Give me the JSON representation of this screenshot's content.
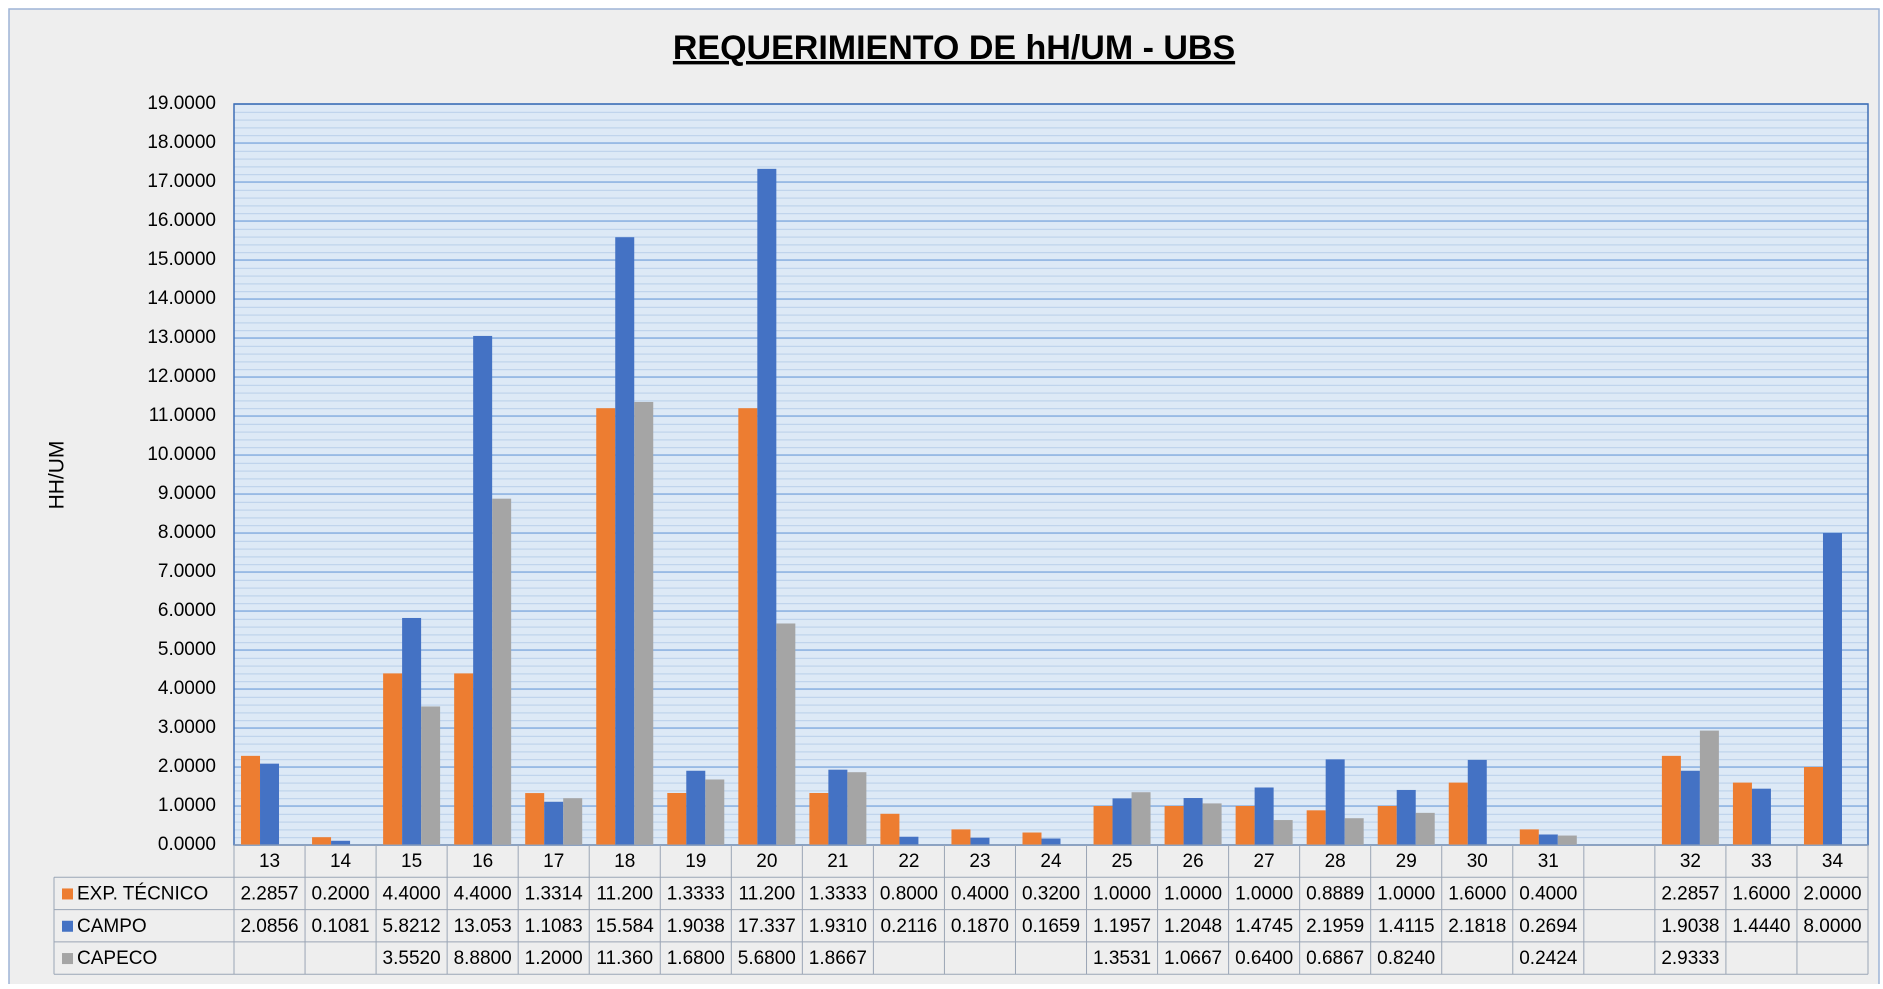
{
  "chart_data": {
    "type": "bar",
    "title": "REQUERIMIENTO DE hH/UM - UBS",
    "ylabel": "HH/UM",
    "categories": [
      "13",
      "14",
      "15",
      "16",
      "17",
      "18",
      "19",
      "20",
      "21",
      "22",
      "23",
      "24",
      "25",
      "26",
      "27",
      "28",
      "29",
      "30",
      "31",
      null,
      "32",
      "33",
      "34"
    ],
    "series": [
      {
        "name": "EXP. TÉCNICO",
        "color": "#ed7d31",
        "values": [
          2.2857,
          0.2,
          4.4,
          4.4,
          1.3314,
          11.2,
          1.3333,
          11.2,
          1.3333,
          0.8,
          0.4,
          0.32,
          1,
          1,
          1,
          0.8889,
          1,
          1.6,
          0.4,
          null,
          2.2857,
          1.6,
          2
        ],
        "value_labels": [
          "2.2857",
          "0.2000",
          "4.4000",
          "4.4000",
          "1.3314",
          "11.200",
          "1.3333",
          "11.200",
          "1.3333",
          "0.8000",
          "0.4000",
          "0.3200",
          "1.0000",
          "1.0000",
          "1.0000",
          "0.8889",
          "1.0000",
          "1.6000",
          "0.4000",
          null,
          "2.2857",
          "1.6000",
          "2.0000"
        ]
      },
      {
        "name": "CAMPO",
        "color": "#4472c4",
        "values": [
          2.0856,
          0.1081,
          5.8212,
          13.053,
          1.1083,
          15.584,
          1.9038,
          17.337,
          1.931,
          0.2116,
          0.187,
          0.1659,
          1.1957,
          1.2048,
          1.4745,
          2.1959,
          1.4115,
          2.1818,
          0.2694,
          null,
          1.9038,
          1.444,
          8
        ],
        "value_labels": [
          "2.0856",
          "0.1081",
          "5.8212",
          "13.053",
          "1.1083",
          "15.584",
          "1.9038",
          "17.337",
          "1.9310",
          "0.2116",
          "0.1870",
          "0.1659",
          "1.1957",
          "1.2048",
          "1.4745",
          "2.1959",
          "1.4115",
          "2.1818",
          "0.2694",
          null,
          "1.9038",
          "1.4440",
          "8.0000"
        ]
      },
      {
        "name": "CAPECO",
        "color": "#a5a5a5",
        "values": [
          null,
          null,
          3.552,
          8.88,
          1.2,
          11.36,
          1.68,
          5.68,
          1.8667,
          null,
          null,
          null,
          1.3531,
          1.0667,
          0.64,
          0.6867,
          0.824,
          null,
          0.2424,
          null,
          2.9333,
          null,
          null
        ],
        "value_labels": [
          null,
          null,
          "3.5520",
          "8.8800",
          "1.2000",
          "11.360",
          "1.6800",
          "5.6800",
          "1.8667",
          null,
          null,
          null,
          "1.3531",
          "1.0667",
          "0.6400",
          "0.6867",
          "0.8240",
          null,
          "0.2424",
          null,
          "2.9333",
          null,
          null
        ]
      }
    ],
    "ylim": [
      0,
      19
    ],
    "yticks": [
      {
        "value": 0,
        "label": "0.0000"
      },
      {
        "value": 1,
        "label": "1.0000"
      },
      {
        "value": 2,
        "label": "2.0000"
      },
      {
        "value": 3,
        "label": "3.0000"
      },
      {
        "value": 4,
        "label": "4.0000"
      },
      {
        "value": 5,
        "label": "5.0000"
      },
      {
        "value": 6,
        "label": "6.0000"
      },
      {
        "value": 7,
        "label": "7.0000"
      },
      {
        "value": 8,
        "label": "8.0000"
      },
      {
        "value": 9,
        "label": "9.0000"
      },
      {
        "value": 10,
        "label": "10.0000"
      },
      {
        "value": 11,
        "label": "11.0000"
      },
      {
        "value": 12,
        "label": "12.0000"
      },
      {
        "value": 13,
        "label": "13.0000"
      },
      {
        "value": 14,
        "label": "14.0000"
      },
      {
        "value": 15,
        "label": "15.0000"
      },
      {
        "value": 16,
        "label": "16.0000"
      },
      {
        "value": 17,
        "label": "17.0000"
      },
      {
        "value": 18,
        "label": "18.0000"
      },
      {
        "value": 19,
        "label": "19.0000"
      }
    ],
    "grid": true,
    "data_table": true
  }
}
